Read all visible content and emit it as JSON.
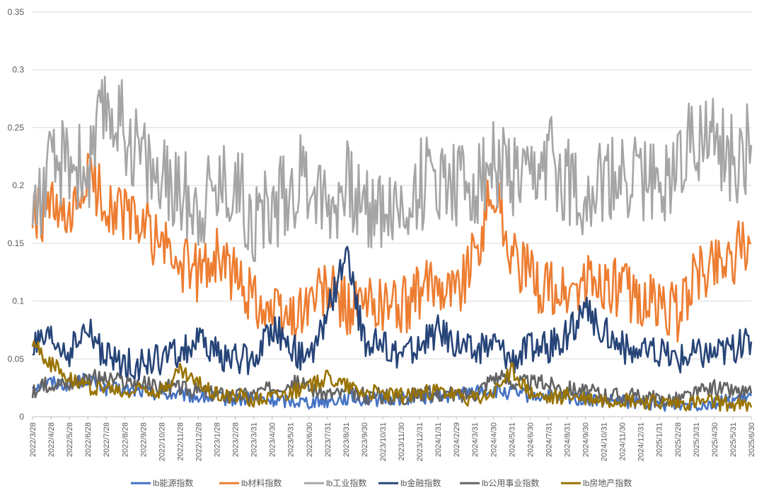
{
  "chart_data": {
    "type": "line",
    "title": "",
    "xlabel": "",
    "ylabel": "",
    "ylim": [
      0,
      0.35
    ],
    "y_ticks": [
      "0",
      "0.05",
      "0.1",
      "0.15",
      "0.2",
      "0.25",
      "0.3",
      "0.35"
    ],
    "grid": "horizontal",
    "legend_position": "bottom",
    "categories": [
      "2022/3/28",
      "2022/4/28",
      "2022/5/28",
      "2022/6/28",
      "2022/7/28",
      "2022/8/28",
      "2022/9/28",
      "2022/10/28",
      "2022/11/28",
      "2022/12/28",
      "2023/1/28",
      "2023/2/28",
      "2023/3/31",
      "2023/4/30",
      "2023/5/31",
      "2023/6/30",
      "2023/7/31",
      "2023/8/31",
      "2023/9/30",
      "2023/10/31",
      "2023/11/30",
      "2023/12/31",
      "2024/1/31",
      "2024/2/29",
      "2024/3/31",
      "2024/4/30",
      "2024/5/31",
      "2024/6/30",
      "2024/7/31",
      "2024/8/31",
      "2024/9/30",
      "2024/10/31",
      "2024/11/30",
      "2024/12/31",
      "2025/1/31",
      "2025/2/28",
      "2025/3/31",
      "2025/4/30",
      "2025/5/31",
      "2025/6/30"
    ],
    "series": [
      {
        "name": "lb能源指数",
        "color": "#4472C4",
        "values": [
          0.027,
          0.03,
          0.028,
          0.033,
          0.024,
          0.023,
          0.022,
          0.02,
          0.019,
          0.017,
          0.016,
          0.015,
          0.015,
          0.014,
          0.014,
          0.013,
          0.014,
          0.016,
          0.015,
          0.015,
          0.016,
          0.017,
          0.018,
          0.019,
          0.022,
          0.022,
          0.02,
          0.018,
          0.017,
          0.016,
          0.015,
          0.013,
          0.013,
          0.012,
          0.011,
          0.011,
          0.011,
          0.012,
          0.014,
          0.018
        ]
      },
      {
        "name": "lb材料指数",
        "color": "#ED7D31",
        "values": [
          0.17,
          0.18,
          0.16,
          0.21,
          0.185,
          0.175,
          0.165,
          0.15,
          0.13,
          0.125,
          0.14,
          0.12,
          0.105,
          0.09,
          0.085,
          0.1,
          0.11,
          0.095,
          0.095,
          0.1,
          0.095,
          0.105,
          0.12,
          0.11,
          0.14,
          0.2,
          0.14,
          0.12,
          0.11,
          0.105,
          0.115,
          0.115,
          0.11,
          0.1,
          0.095,
          0.09,
          0.12,
          0.135,
          0.14,
          0.15
        ]
      },
      {
        "name": "lb工业指数",
        "color": "#A5A5A5",
        "values": [
          0.18,
          0.21,
          0.225,
          0.21,
          0.27,
          0.25,
          0.225,
          0.2,
          0.195,
          0.185,
          0.2,
          0.205,
          0.17,
          0.18,
          0.2,
          0.21,
          0.185,
          0.2,
          0.18,
          0.185,
          0.175,
          0.2,
          0.21,
          0.205,
          0.2,
          0.22,
          0.205,
          0.195,
          0.225,
          0.205,
          0.195,
          0.2,
          0.205,
          0.21,
          0.195,
          0.225,
          0.245,
          0.235,
          0.22,
          0.235
        ]
      },
      {
        "name": "lb金融指数",
        "color": "#264478",
        "values": [
          0.06,
          0.065,
          0.055,
          0.075,
          0.05,
          0.045,
          0.045,
          0.05,
          0.055,
          0.065,
          0.055,
          0.05,
          0.048,
          0.08,
          0.06,
          0.045,
          0.09,
          0.14,
          0.065,
          0.06,
          0.055,
          0.06,
          0.075,
          0.065,
          0.055,
          0.065,
          0.05,
          0.06,
          0.06,
          0.07,
          0.09,
          0.075,
          0.06,
          0.055,
          0.055,
          0.05,
          0.055,
          0.055,
          0.06,
          0.065
        ]
      },
      {
        "name": "lb公用事业指数",
        "color": "#636363",
        "values": [
          0.02,
          0.03,
          0.028,
          0.035,
          0.032,
          0.03,
          0.028,
          0.025,
          0.025,
          0.022,
          0.02,
          0.018,
          0.02,
          0.025,
          0.03,
          0.025,
          0.02,
          0.02,
          0.018,
          0.018,
          0.017,
          0.02,
          0.02,
          0.018,
          0.02,
          0.035,
          0.03,
          0.03,
          0.028,
          0.025,
          0.022,
          0.02,
          0.018,
          0.017,
          0.015,
          0.015,
          0.02,
          0.025,
          0.022,
          0.02
        ]
      },
      {
        "name": "lb房地产指数",
        "color": "#997300",
        "values": [
          0.065,
          0.045,
          0.035,
          0.025,
          0.025,
          0.02,
          0.025,
          0.022,
          0.04,
          0.028,
          0.02,
          0.018,
          0.015,
          0.018,
          0.022,
          0.025,
          0.035,
          0.028,
          0.022,
          0.02,
          0.018,
          0.02,
          0.022,
          0.018,
          0.015,
          0.02,
          0.04,
          0.02,
          0.015,
          0.018,
          0.016,
          0.014,
          0.015,
          0.013,
          0.012,
          0.011,
          0.012,
          0.012,
          0.01,
          0.008
        ]
      }
    ]
  }
}
